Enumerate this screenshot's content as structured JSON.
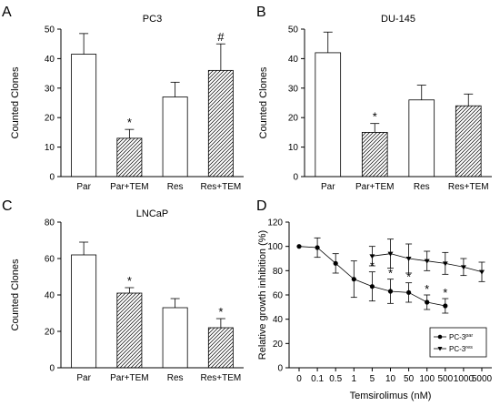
{
  "chart_data": [
    {
      "id": "A",
      "type": "bar",
      "letter": "A",
      "title": "PC3",
      "ylabel": "Counted Clones",
      "xlabel": "",
      "ylim": [
        0,
        50
      ],
      "yticks": [
        0,
        10,
        20,
        30,
        40,
        50
      ],
      "categories": [
        "Par",
        "Par+TEM",
        "Res",
        "Res+TEM"
      ],
      "values": [
        41.5,
        13,
        27,
        36
      ],
      "errors": [
        7,
        3,
        5,
        9
      ],
      "hatched": [
        false,
        true,
        false,
        true
      ],
      "annotations": [
        "",
        "*",
        "",
        "#"
      ]
    },
    {
      "id": "B",
      "type": "bar",
      "letter": "B",
      "title": "DU-145",
      "ylabel": "Counted Clones",
      "xlabel": "",
      "ylim": [
        0,
        50
      ],
      "yticks": [
        0,
        10,
        20,
        30,
        40,
        50
      ],
      "categories": [
        "Par",
        "Par+TEM",
        "Res",
        "Res+TEM"
      ],
      "values": [
        42,
        15,
        26,
        24
      ],
      "errors": [
        7,
        3,
        5,
        4
      ],
      "hatched": [
        false,
        true,
        false,
        true
      ],
      "annotations": [
        "",
        "*",
        "",
        ""
      ]
    },
    {
      "id": "C",
      "type": "bar",
      "letter": "C",
      "title": "LNCaP",
      "ylabel": "Counted Clones",
      "xlabel": "",
      "ylim": [
        0,
        80
      ],
      "yticks": [
        0,
        20,
        40,
        60,
        80
      ],
      "categories": [
        "Par",
        "Par+TEM",
        "Res",
        "Res+TEM"
      ],
      "values": [
        62,
        41,
        33,
        22
      ],
      "errors": [
        7,
        3,
        5,
        5
      ],
      "hatched": [
        false,
        true,
        false,
        true
      ],
      "annotations": [
        "",
        "*",
        "",
        "*"
      ]
    },
    {
      "id": "D",
      "type": "line",
      "letter": "D",
      "title": "",
      "ylabel": "Relative growth inhibition (%)",
      "xlabel": "Temsirolimus (nM)",
      "ylim": [
        0,
        120
      ],
      "yticks": [
        0,
        20,
        40,
        60,
        80,
        100,
        120
      ],
      "x": [
        "0",
        "0.1",
        "0.5",
        "1",
        "5",
        "10",
        "50",
        "100",
        "500",
        "1000",
        "5000"
      ],
      "legend_position": "bottom-right",
      "series": [
        {
          "name": "PC-3",
          "name_sup": "par",
          "marker": "circle",
          "x": [
            "0",
            "0.1",
            "0.5",
            "1",
            "5",
            "10",
            "50",
            "100",
            "500"
          ],
          "y": [
            100,
            99,
            86,
            73,
            67,
            63,
            62,
            54,
            51
          ],
          "errors": [
            0,
            8,
            8,
            15,
            12,
            10,
            8,
            6,
            6
          ],
          "annotations": [
            "",
            "",
            "",
            "",
            "*",
            "*",
            "*",
            "*",
            "*"
          ]
        },
        {
          "name": "PC-3",
          "name_sup": "res",
          "marker": "triangle-down",
          "x": [
            "5",
            "10",
            "50",
            "100",
            "500",
            "1000",
            "5000"
          ],
          "y": [
            92,
            94,
            90,
            88,
            86,
            83,
            79
          ],
          "errors": [
            8,
            12,
            12,
            8,
            9,
            7,
            8
          ],
          "annotations": [
            "",
            "",
            "",
            "",
            "",
            "",
            ""
          ]
        }
      ]
    }
  ]
}
